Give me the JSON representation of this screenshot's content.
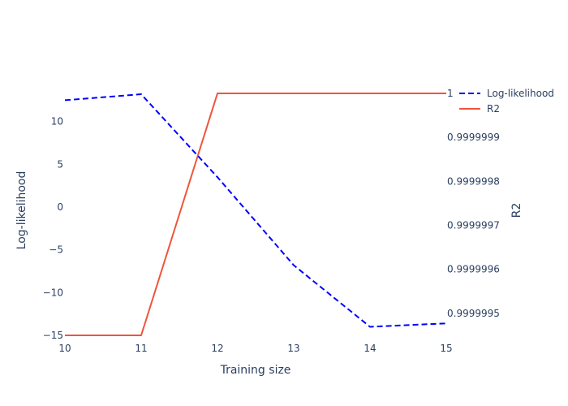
{
  "chart_data": {
    "type": "line",
    "title": "",
    "x": [
      10,
      11,
      12,
      13,
      14,
      15
    ],
    "xlabel": "Training size",
    "xlim": [
      10,
      15
    ],
    "x_ticks": [
      "10",
      "11",
      "12",
      "13",
      "14",
      "15"
    ],
    "y_left": {
      "label": "Log-likelihood",
      "lim": [
        -15.0,
        13.3
      ],
      "ticks": [
        -15,
        -10,
        -5,
        0,
        5,
        10
      ],
      "tick_labels": [
        "−15",
        "−10",
        "−5",
        "0",
        "5",
        "10"
      ]
    },
    "y_right": {
      "label": "R2",
      "lim": [
        0.99999945,
        1.0
      ],
      "ticks": [
        0.9999995,
        0.9999996,
        0.9999997,
        0.9999998,
        0.9999999,
        1.0
      ],
      "tick_labels": [
        "0.9999995",
        "0.9999996",
        "0.9999997",
        "0.9999998",
        "0.9999999",
        "1"
      ]
    },
    "series": [
      {
        "name": "Log-likelihood",
        "axis": "left",
        "values": [
          12.5,
          13.2,
          3.5,
          -6.8,
          -14.0,
          -13.6
        ],
        "color": "#0000ff",
        "dash": "dashed"
      },
      {
        "name": "R2",
        "axis": "right",
        "values": [
          0.99999945,
          0.99999945,
          1.0,
          1.0,
          1.0,
          1.0
        ],
        "color": "#ef553b",
        "dash": "solid"
      }
    ],
    "legend": "top-right",
    "grid": false
  }
}
